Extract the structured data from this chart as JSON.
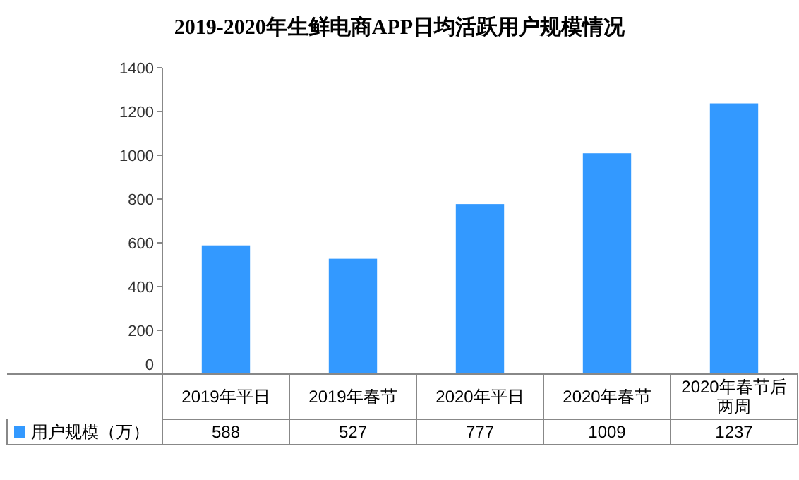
{
  "chart_data": {
    "type": "bar",
    "title": "2019-2020年生鲜电商APP日均活跃用户规模情况",
    "categories": [
      "2019年平日",
      "2019年春节",
      "2020年平日",
      "2020年春节",
      "2020年春节后两周"
    ],
    "series": [
      {
        "name": "用户规模（万）",
        "color": "#3399ff",
        "values": [
          588,
          527,
          777,
          1009,
          1237
        ]
      }
    ],
    "ylim": [
      0,
      1400
    ],
    "yticks": [
      0,
      200,
      400,
      600,
      800,
      1000,
      1200,
      1400
    ],
    "data_labels": true
  }
}
